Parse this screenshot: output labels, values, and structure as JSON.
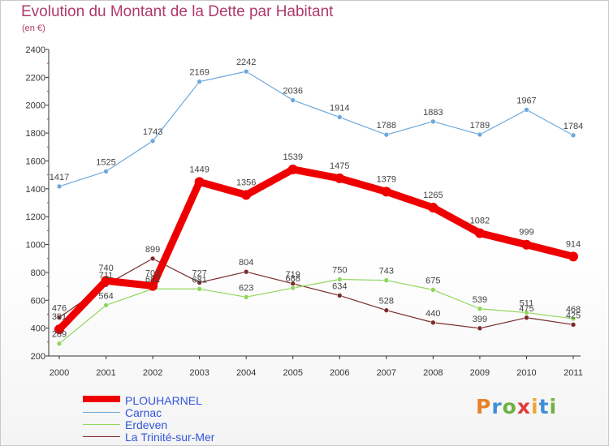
{
  "header": {
    "title": "Evolution du Montant de la Dette par Habitant",
    "subtitle": "(en €)"
  },
  "logo": {
    "text": "Proxiti",
    "letter_colors": [
      "#e8812a",
      "#3f8fd6",
      "#6cb33f",
      "#e23b3b",
      "#f2a532",
      "#3f8fd6",
      "#6cb33f"
    ]
  },
  "chart_data": {
    "type": "line",
    "title": "Evolution du Montant de la Dette par Habitant",
    "subtitle": "(en €)",
    "x": [
      "2000",
      "2001",
      "2002",
      "2003",
      "2004",
      "2005",
      "2006",
      "2007",
      "2008",
      "2009",
      "2010",
      "2011"
    ],
    "ylim": [
      200,
      2400
    ],
    "yticks": [
      200,
      400,
      600,
      800,
      1000,
      1200,
      1400,
      1600,
      1800,
      2000,
      2200,
      2400
    ],
    "grid": false,
    "legend_position": "bottom-left",
    "series": [
      {
        "name": "La Trinité-sur-Mer",
        "color": "#7b2b2b",
        "values": [
          476,
          711,
          899,
          727,
          804,
          719,
          634,
          528,
          440,
          399,
          475,
          425
        ]
      },
      {
        "name": "Erdeven",
        "color": "#8fd65a",
        "values": [
          289,
          564,
          682,
          681,
          623,
          688,
          750,
          743,
          675,
          539,
          511,
          468
        ]
      },
      {
        "name": "Carnac",
        "color": "#6ea8db",
        "values": [
          1417,
          1525,
          1743,
          2169,
          2242,
          2036,
          1914,
          1788,
          1883,
          1789,
          1967,
          1784
        ]
      },
      {
        "name": "PLOUHARNEL",
        "color": "#ee0000",
        "values": [
          391,
          740,
          703,
          1449,
          1356,
          1539,
          1475,
          1379,
          1265,
          1082,
          999,
          914
        ]
      }
    ]
  },
  "legend": {
    "items": [
      {
        "label": "PLOUHARNEL",
        "color": "#ee0000"
      },
      {
        "label": "Carnac",
        "color": "#6ea8db"
      },
      {
        "label": "Erdeven",
        "color": "#8fd65a"
      },
      {
        "label": "La Trinité-sur-Mer",
        "color": "#7b2b2b"
      }
    ]
  }
}
